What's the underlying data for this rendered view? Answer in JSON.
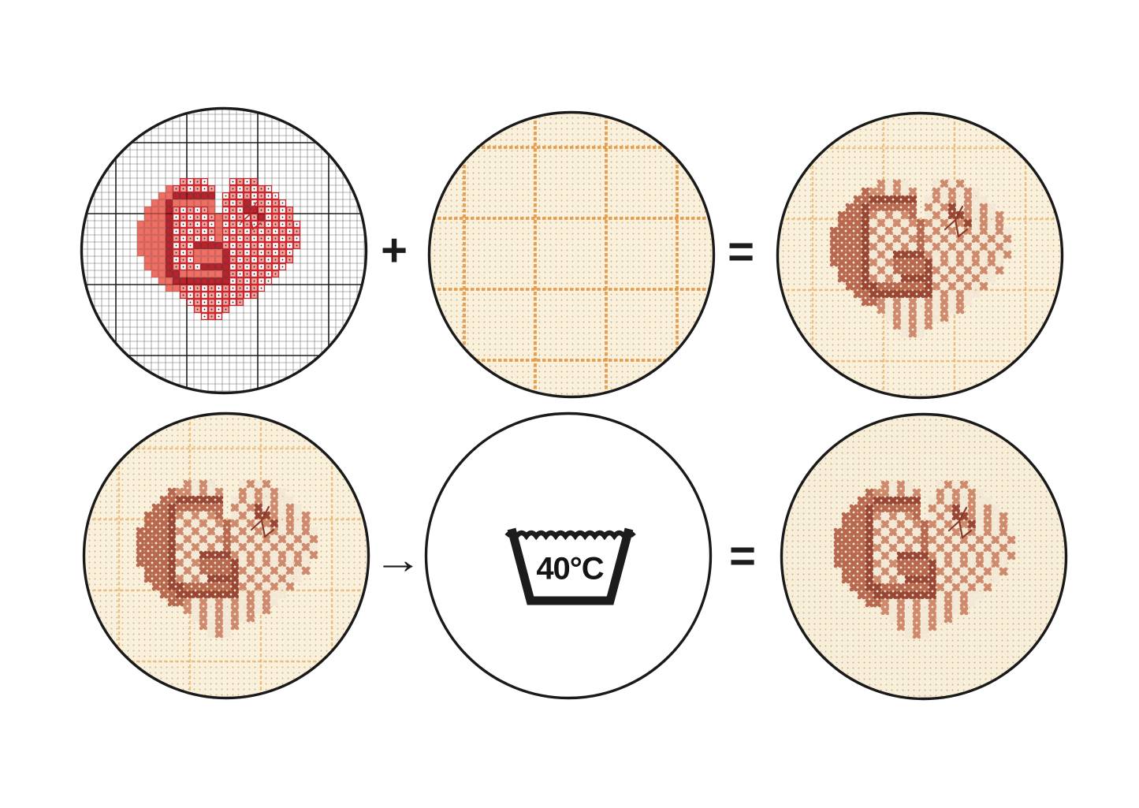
{
  "operators": {
    "plus": "+",
    "equals_top": "=",
    "arrow": "→",
    "equals_bottom": "="
  },
  "wash_symbol": {
    "temperature_label": "40°C"
  },
  "colors": {
    "ink": "#1c1c1c",
    "circle_border": "#1a1a1a",
    "chart": {
      "background": "#ffffff",
      "grid": "#6e6e6e",
      "grid_bold": "#1d1d1d",
      "salmon": "#ee6f63",
      "dark_red": "#b3262e",
      "pink": "#f3a69f",
      "white": "#ffffff",
      "cell_outline": "#c9262d",
      "symbol_dot": "#2a2a2a",
      "backstitch": "#c5242c"
    },
    "stitched": {
      "mid": "#b8684f",
      "dark": "#9a4634",
      "light": "#cf8a6d",
      "white": "#f2e8d5",
      "backstitch": "#8a3a28"
    },
    "fabric": {
      "base": "#faf1dd",
      "washed_base": "#f8efda",
      "dot": "#c49a6a",
      "grid_line": "#e6953f",
      "grid_line_faint": "#e9ae63"
    }
  },
  "pattern": {
    "columns": 23,
    "rows": 20,
    "legend": {
      "S": "salmon solid stitch",
      "D": "dark red stitch",
      "P": "pink stitch with symbol",
      "W": "white stitch with symbol",
      ".": "empty"
    },
    "cells": [
      "......PWPW...WPWP......",
      "....SPPWPWP..PWPWPW....",
      "...SSDDDDDD.WPWPWPWW...",
      "..SSDSSSSSS.PWPDWPWPW..",
      ".SSSDPWPWPS.WPWDDPWPWP.",
      ".SSSDWPWPWPSPWPWPDWPWP.",
      "SSSSDPWPWPWSWPWPWPWPWPW",
      "SSSSDWPWPWPSPWPWPWPWPWP",
      "SSSSDPWPWPWSWPWPWPWPWPW",
      "SSSSDWPWDDDDPWPWPWPWPWP",
      "SSSSDPWPSSSSDWPWPWPWPW.",
      ".SSSDWPWSSSSDPWPWPWPWP.",
      ".SSSDPWPWDDDDWPWPWPWW..",
      "..SSDDSSSSSSDPWPWPWP...",
      "...SSDDDDDDDDWPWPWW....",
      "....SSPWPWPWPWPWPW.....",
      "......PWPWPWPWPWP......",
      ".......WPWPWPWP........",
      "........PWPWP..........",
      ".........WPW..........."
    ],
    "backstitch_segments": [
      [
        16.8,
        3.4,
        15.9,
        5.1
      ],
      [
        15.9,
        5.1,
        14.6,
        6.3
      ],
      [
        15.9,
        5.1,
        16.3,
        7.2
      ],
      [
        16.3,
        7.2,
        17.4,
        6.3
      ]
    ]
  }
}
